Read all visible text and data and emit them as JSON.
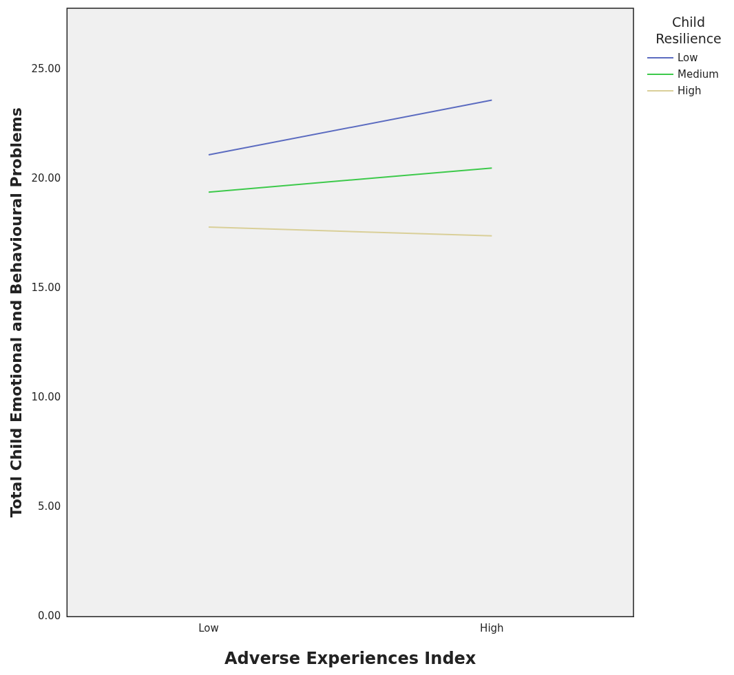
{
  "chart_data": {
    "type": "line",
    "xlabel": "Adverse Experiences Index",
    "ylabel": "Total Child Emotional and Behavioural Problems",
    "legend_title": "Child Resilience",
    "legend": "right",
    "grid": false,
    "marker": "none",
    "line_style": "solid",
    "categories": [
      "Low",
      "High"
    ],
    "ylim": [
      0,
      27.8
    ],
    "yticks": [
      {
        "value": 0,
        "label": "0.00"
      },
      {
        "value": 5,
        "label": "5.00"
      },
      {
        "value": 10,
        "label": "10.00"
      },
      {
        "value": 15,
        "label": "15.00"
      },
      {
        "value": 20,
        "label": "20.00"
      },
      {
        "value": 25,
        "label": "25.00"
      }
    ],
    "series": [
      {
        "name": "Low",
        "color": "#5b6bc0",
        "values": [
          21.1,
          23.6
        ]
      },
      {
        "name": "Medium",
        "color": "#3cc94a",
        "values": [
          19.4,
          20.5
        ]
      },
      {
        "name": "High",
        "color": "#d9cf98",
        "values": [
          17.8,
          17.4
        ]
      }
    ]
  }
}
